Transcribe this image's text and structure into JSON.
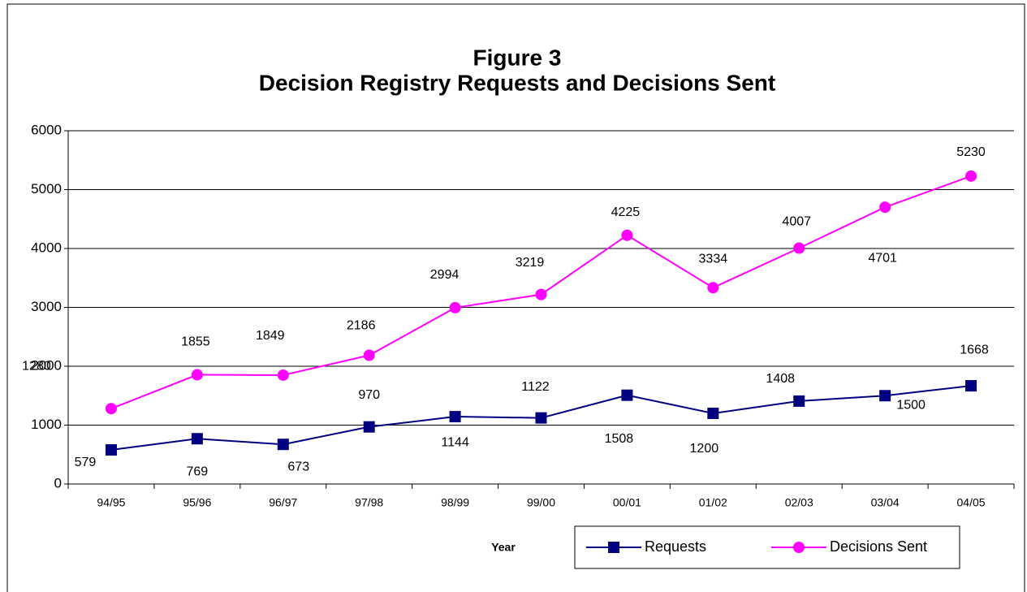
{
  "chart_data": {
    "type": "line",
    "title": "Figure 3",
    "subtitle": "Decision Registry Requests and Decisions Sent",
    "x_label": "Year",
    "categories": [
      "94/95",
      "95/96",
      "96/97",
      "97/98",
      "98/99",
      "99/00",
      "00/01",
      "01/02",
      "02/03",
      "03/04",
      "04/05"
    ],
    "series": [
      {
        "name": "Requests",
        "color": "#000080",
        "marker": "square",
        "values": [
          579,
          769,
          673,
          970,
          1144,
          1122,
          1508,
          1200,
          1408,
          1500,
          1668
        ]
      },
      {
        "name": "Decisions Sent",
        "color": "#ff00ff",
        "marker": "circle",
        "values": [
          1280,
          1855,
          1849,
          2186,
          2994,
          3219,
          4225,
          3334,
          4007,
          4701,
          5230
        ]
      }
    ],
    "ylim": [
      0,
      6000
    ],
    "yticks": [
      0,
      1000,
      2000,
      3000,
      4000,
      5000,
      6000
    ],
    "grid": true,
    "legend": "bottom-right"
  }
}
